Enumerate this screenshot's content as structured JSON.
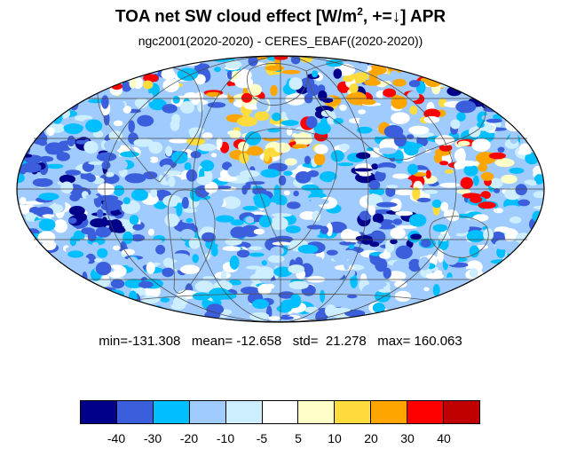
{
  "title": {
    "text_before": "TOA net SW cloud effect [W/m",
    "superscript": "2",
    "text_after": ", +=↓]  APR"
  },
  "subtitle": "ngc2001(2020-2020) - CERES_EBAF((2020-2020))",
  "stats": {
    "min": "min=-131.308",
    "mean": "mean= -12.658",
    "std": "std=  21.278",
    "max": "max= 160.063"
  },
  "colorbar": {
    "colors": [
      "#00008b",
      "#3b5fdc",
      "#00bfff",
      "#9fcbff",
      "#cdeeff",
      "#ffffff",
      "#ffffc8",
      "#ffdc3c",
      "#ffa500",
      "#ff0000",
      "#c00000"
    ],
    "labels": [
      "-40",
      "-30",
      "-20",
      "-10",
      "-5",
      "5",
      "10",
      "20",
      "30",
      "40"
    ]
  },
  "map": {
    "projection": "Mollweide",
    "ocean_colors": [
      "#00bfff",
      "#9fcbff",
      "#cdeeff",
      "#3b5fdc",
      "#ffffff"
    ],
    "land_colors": [
      "#ffffff",
      "#ffffc8",
      "#ffdc3c",
      "#ffa500",
      "#ff0000"
    ]
  }
}
